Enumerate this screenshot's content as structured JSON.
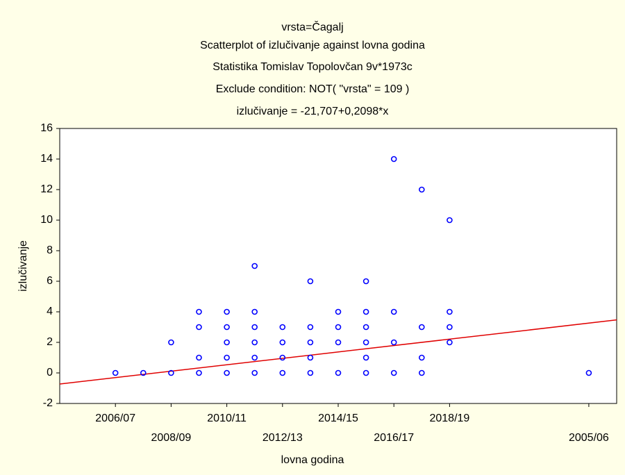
{
  "chart_data": {
    "type": "scatter",
    "titles": [
      "vrsta=Čagalj",
      "Scatterplot of izlučivanje against lovna godina",
      "Statistika Tomislav Topolovčan 9v*1973c",
      "Exclude condition: NOT( \"vrsta\" = 109 )",
      "izlučivanje = -21,707+0,2098*x"
    ],
    "x_label": "lovna godina",
    "y_label": "izlučivanje",
    "x": [
      102,
      103,
      104,
      104,
      105,
      105,
      105,
      105,
      106,
      106,
      106,
      106,
      106,
      107,
      107,
      107,
      107,
      107,
      107,
      108,
      108,
      108,
      108,
      109,
      109,
      109,
      109,
      109,
      110,
      110,
      110,
      110,
      111,
      111,
      111,
      111,
      111,
      111,
      112,
      112,
      112,
      112,
      113,
      113,
      113,
      113,
      114,
      114,
      114,
      114,
      119
    ],
    "y": [
      0,
      0,
      0,
      2,
      0,
      1,
      3,
      4,
      0,
      1,
      2,
      3,
      4,
      0,
      1,
      2,
      3,
      4,
      7,
      0,
      1,
      2,
      3,
      0,
      1,
      2,
      3,
      6,
      0,
      2,
      3,
      4,
      0,
      1,
      2,
      3,
      4,
      6,
      0,
      2,
      4,
      14,
      0,
      1,
      3,
      12,
      2,
      3,
      4,
      10,
      0
    ],
    "color": "#0000ff",
    "regression": {
      "intercept": -21.707,
      "slope": 0.2098,
      "color": "#e00000"
    },
    "xlim": [
      100,
      120
    ],
    "xticks": [
      {
        "value": 102,
        "label": "2006/07"
      },
      {
        "value": 104,
        "label": "2008/09"
      },
      {
        "value": 106,
        "label": "2010/11"
      },
      {
        "value": 108,
        "label": "2012/13"
      },
      {
        "value": 110,
        "label": "2014/15"
      },
      {
        "value": 112,
        "label": "2016/17"
      },
      {
        "value": 114,
        "label": "2018/19"
      },
      {
        "value": 119,
        "label": "2005/06"
      }
    ],
    "ylim": [
      -2,
      16
    ],
    "yticks": [
      -2,
      0,
      2,
      4,
      6,
      8,
      10,
      12,
      14,
      16
    ],
    "grid": false
  }
}
